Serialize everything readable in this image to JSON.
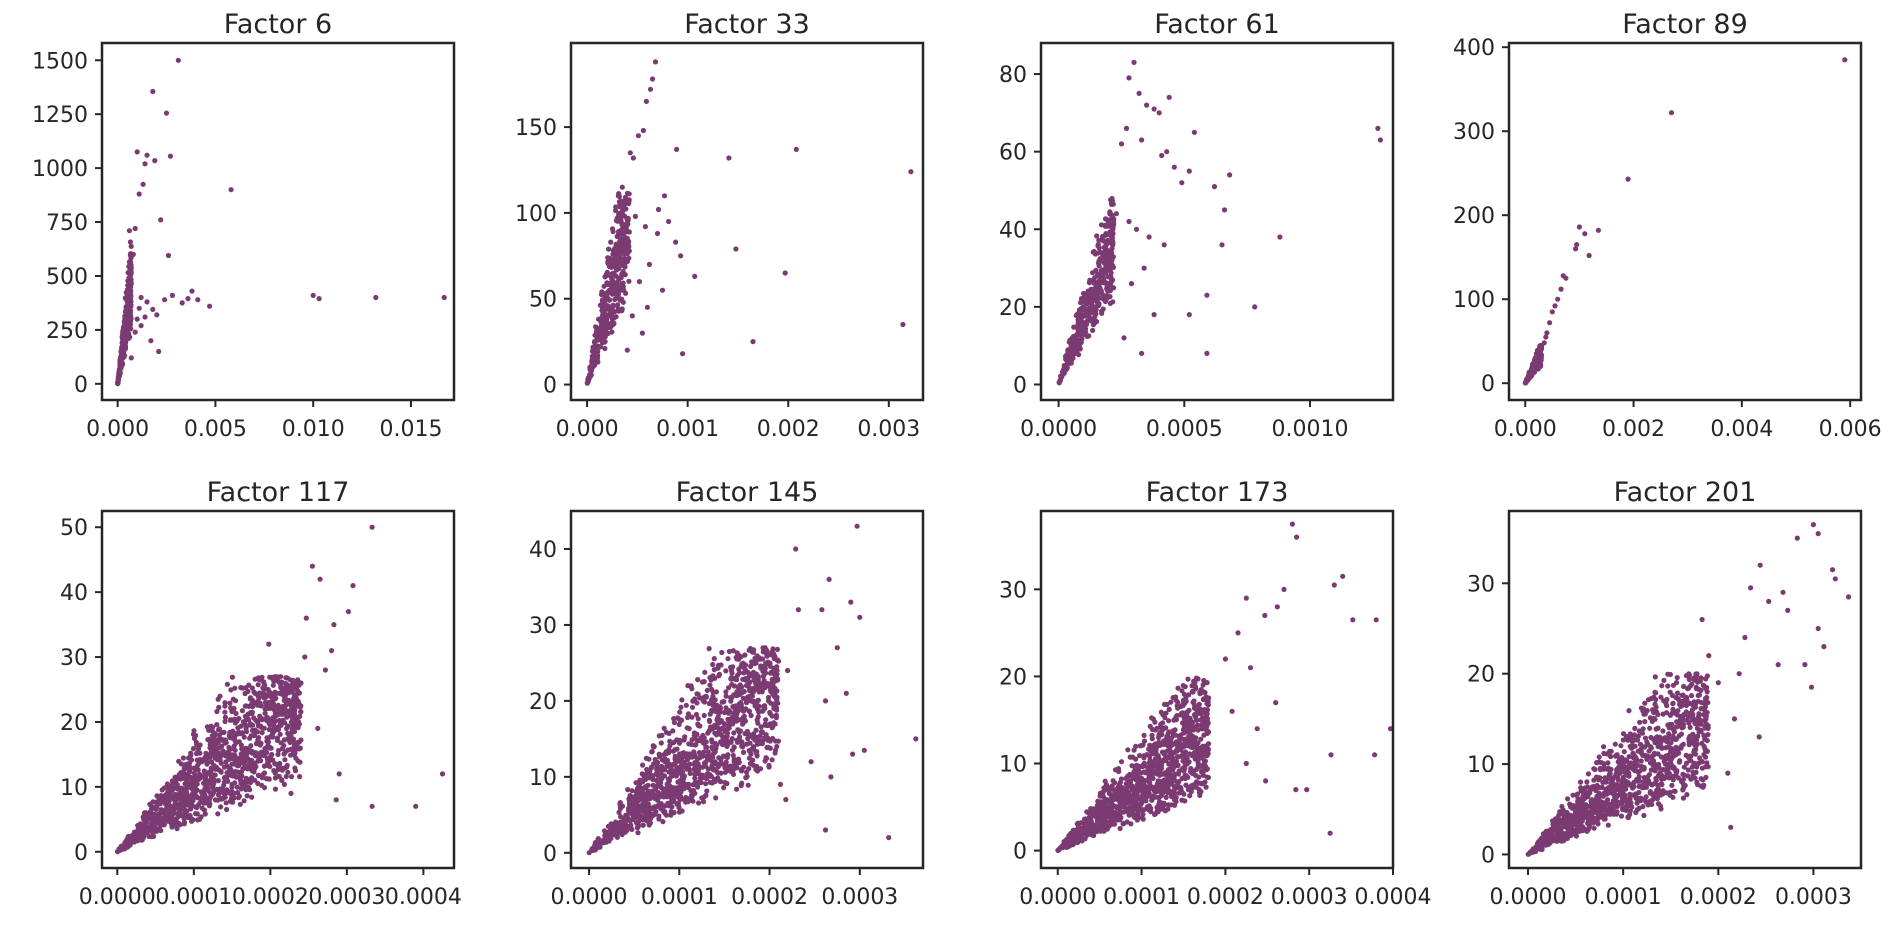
{
  "figure": {
    "marker_color": "#7b3b72",
    "text_color": "#262626"
  },
  "chart_data": [
    {
      "type": "scatter",
      "title": "Factor 6",
      "xlim": [
        -0.0008,
        0.0172
      ],
      "ylim": [
        -75,
        1580
      ],
      "xticks": [
        0.0,
        0.005,
        0.01,
        0.015
      ],
      "xtick_labels": [
        "0.000",
        "0.005",
        "0.010",
        "0.015"
      ],
      "yticks": [
        0,
        250,
        500,
        750,
        1000,
        1250,
        1500
      ],
      "ytick_labels": [
        "0",
        "250",
        "500",
        "750",
        "1000",
        "1250",
        "1500"
      ],
      "points": [
        [
          0.0031,
          1500
        ],
        [
          0.0018,
          1355
        ],
        [
          0.0025,
          1255
        ],
        [
          0.001,
          1075
        ],
        [
          0.0015,
          1060
        ],
        [
          0.0019,
          1035
        ],
        [
          0.0027,
          1055
        ],
        [
          0.0014,
          1020
        ],
        [
          0.0013,
          925
        ],
        [
          0.0011,
          880
        ],
        [
          0.0058,
          900
        ],
        [
          0.0022,
          760
        ],
        [
          0.0009,
          720
        ],
        [
          0.0006,
          710
        ],
        [
          0.0026,
          595
        ],
        [
          0.0008,
          600
        ],
        [
          0.0012,
          400
        ],
        [
          0.0024,
          390
        ],
        [
          0.0028,
          410
        ],
        [
          0.0033,
          375
        ],
        [
          0.0036,
          395
        ],
        [
          0.0038,
          430
        ],
        [
          0.0041,
          390
        ],
        [
          0.0047,
          360
        ],
        [
          0.01,
          410
        ],
        [
          0.0103,
          395
        ],
        [
          0.0132,
          400
        ],
        [
          0.0167,
          400
        ],
        [
          0.0018,
          345
        ],
        [
          0.0015,
          380
        ],
        [
          0.002,
          320
        ],
        [
          0.0012,
          270
        ],
        [
          0.0014,
          310
        ],
        [
          0.0017,
          200
        ],
        [
          0.0021,
          150
        ],
        [
          0.0009,
          240
        ],
        [
          0.001,
          300
        ],
        [
          0.0011,
          350
        ],
        [
          0.0007,
          120
        ],
        [
          0.0005,
          380
        ]
      ],
      "dense_cluster": {
        "x_max": 0.0007,
        "y_max": 700,
        "slope": 800000,
        "spread": 0.3,
        "count": 380
      }
    },
    {
      "type": "scatter",
      "title": "Factor 33",
      "xlim": [
        -0.00016,
        0.00334
      ],
      "ylim": [
        -9,
        199
      ],
      "xticks": [
        0.0,
        0.001,
        0.002,
        0.003
      ],
      "xtick_labels": [
        "0.000",
        "0.001",
        "0.002",
        "0.003"
      ],
      "yticks": [
        0,
        50,
        100,
        150
      ],
      "ytick_labels": [
        "0",
        "50",
        "100",
        "150"
      ],
      "points": [
        [
          0.00068,
          188
        ],
        [
          0.00065,
          178
        ],
        [
          0.00063,
          172
        ],
        [
          0.00059,
          165
        ],
        [
          0.00056,
          148
        ],
        [
          0.00051,
          145
        ],
        [
          0.00043,
          135
        ],
        [
          0.00046,
          132
        ],
        [
          0.00089,
          137
        ],
        [
          0.00141,
          132
        ],
        [
          0.00208,
          137
        ],
        [
          0.00322,
          124
        ],
        [
          0.00148,
          79
        ],
        [
          0.00197,
          65
        ],
        [
          0.00314,
          35
        ],
        [
          0.00165,
          25
        ],
        [
          0.00107,
          63
        ],
        [
          0.00093,
          75
        ],
        [
          0.00081,
          95
        ],
        [
          0.00077,
          110
        ],
        [
          0.00071,
          102
        ],
        [
          0.00088,
          83
        ],
        [
          0.00095,
          18
        ],
        [
          0.00075,
          55
        ],
        [
          0.0006,
          45
        ],
        [
          0.00055,
          30
        ],
        [
          0.00062,
          70
        ],
        [
          0.0007,
          88
        ],
        [
          0.00052,
          60
        ],
        [
          0.00045,
          40
        ],
        [
          0.0004,
          20
        ],
        [
          0.00038,
          85
        ],
        [
          0.00035,
          115
        ],
        [
          0.00031,
          110
        ],
        [
          0.00048,
          98
        ],
        [
          0.00058,
          92
        ]
      ],
      "dense_cluster": {
        "x_max": 0.00042,
        "y_max": 112,
        "slope": 300000,
        "spread": 0.35,
        "count": 420
      }
    },
    {
      "type": "scatter",
      "title": "Factor 61",
      "xlim": [
        -7e-05,
        0.00133
      ],
      "ylim": [
        -4,
        88
      ],
      "xticks": [
        0.0,
        0.0005,
        0.001
      ],
      "xtick_labels": [
        "0.0000",
        "0.0005",
        "0.0010"
      ],
      "yticks": [
        0,
        20,
        40,
        60,
        80
      ],
      "ytick_labels": [
        "0",
        "20",
        "40",
        "60",
        "80"
      ],
      "points": [
        [
          0.0003,
          83
        ],
        [
          0.00028,
          79
        ],
        [
          0.00032,
          75
        ],
        [
          0.00035,
          72
        ],
        [
          0.00038,
          71
        ],
        [
          0.0004,
          70
        ],
        [
          0.00044,
          74
        ],
        [
          0.00046,
          56
        ],
        [
          0.00049,
          52
        ],
        [
          0.00052,
          55
        ],
        [
          0.00054,
          65
        ],
        [
          0.00043,
          60
        ],
        [
          0.00041,
          59
        ],
        [
          0.00033,
          63
        ],
        [
          0.00027,
          66
        ],
        [
          0.00025,
          62
        ],
        [
          0.00062,
          51
        ],
        [
          0.00068,
          54
        ],
        [
          0.00066,
          45
        ],
        [
          0.00065,
          36
        ],
        [
          0.00078,
          20
        ],
        [
          0.00059,
          23
        ],
        [
          0.00052,
          18
        ],
        [
          0.00088,
          38
        ],
        [
          0.00127,
          66
        ],
        [
          0.00128,
          63
        ],
        [
          0.00059,
          8
        ],
        [
          0.00042,
          36
        ],
        [
          0.00036,
          38
        ],
        [
          0.00031,
          40
        ],
        [
          0.00029,
          26
        ],
        [
          0.00034,
          30
        ],
        [
          0.00038,
          18
        ],
        [
          0.00033,
          8
        ],
        [
          0.00026,
          12
        ],
        [
          0.00023,
          44
        ],
        [
          0.00028,
          42
        ]
      ],
      "dense_cluster": {
        "x_max": 0.00022,
        "y_max": 48,
        "slope": 215000,
        "spread": 0.3,
        "count": 420
      }
    },
    {
      "type": "scatter",
      "title": "Factor 89",
      "xlim": [
        -0.0003,
        0.0062
      ],
      "ylim": [
        -20,
        405
      ],
      "xticks": [
        0.0,
        0.002,
        0.004,
        0.006
      ],
      "xtick_labels": [
        "0.000",
        "0.002",
        "0.004",
        "0.006"
      ],
      "yticks": [
        0,
        100,
        200,
        300,
        400
      ],
      "ytick_labels": [
        "0",
        "100",
        "200",
        "300",
        "400"
      ],
      "points": [
        [
          0.0059,
          385
        ],
        [
          0.0027,
          322
        ],
        [
          0.0019,
          243
        ],
        [
          0.00135,
          182
        ],
        [
          0.001,
          186
        ],
        [
          0.0011,
          178
        ],
        [
          0.00095,
          165
        ],
        [
          0.00093,
          160
        ],
        [
          0.00118,
          152
        ],
        [
          0.0007,
          128
        ],
        [
          0.00075,
          125
        ],
        [
          0.00066,
          112
        ],
        [
          0.0006,
          100
        ],
        [
          0.00055,
          92
        ],
        [
          0.0005,
          85
        ],
        [
          0.00045,
          72
        ],
        [
          0.0004,
          60
        ],
        [
          0.00038,
          55
        ],
        [
          0.00035,
          48
        ],
        [
          0.0003,
          42
        ]
      ],
      "dense_cluster": {
        "x_max": 0.0003,
        "y_max": 45,
        "slope": 150000,
        "spread": 0.25,
        "count": 220
      }
    },
    {
      "type": "scatter",
      "title": "Factor 117",
      "xlim": [
        -2e-05,
        0.00044
      ],
      "ylim": [
        -2.5,
        52.5
      ],
      "xticks": [
        0.0,
        0.0001,
        0.0002,
        0.0003,
        0.0004
      ],
      "xtick_labels": [
        "0.0000",
        "0.0001",
        "0.0002",
        "0.0003",
        "0.0004"
      ],
      "yticks": [
        0,
        10,
        20,
        30,
        40,
        50
      ],
      "ytick_labels": [
        "0",
        "10",
        "20",
        "30",
        "40",
        "50"
      ],
      "points": [
        [
          0.000333,
          50
        ],
        [
          0.000255,
          44
        ],
        [
          0.000265,
          42
        ],
        [
          0.000308,
          41
        ],
        [
          0.000302,
          37
        ],
        [
          0.000283,
          35
        ],
        [
          0.00028,
          31
        ],
        [
          0.000272,
          28
        ],
        [
          0.000247,
          36
        ],
        [
          0.00029,
          12
        ],
        [
          0.000286,
          8
        ],
        [
          0.000333,
          7
        ],
        [
          0.00039,
          7
        ],
        [
          0.000425,
          12
        ],
        [
          0.00024,
          26
        ],
        [
          0.000232,
          22
        ],
        [
          0.000262,
          19
        ],
        [
          0.000227,
          9
        ],
        [
          0.00021,
          15
        ],
        [
          0.000198,
          32
        ],
        [
          0.000245,
          30
        ],
        [
          0.000215,
          11
        ],
        [
          0.000192,
          24
        ],
        [
          0.000236,
          14
        ]
      ],
      "dense_cluster": {
        "x_max": 0.00024,
        "y_max": 27,
        "slope": 130000,
        "spread": 0.45,
        "count": 1200
      }
    },
    {
      "type": "scatter",
      "title": "Factor 145",
      "xlim": [
        -2e-05,
        0.00037
      ],
      "ylim": [
        -2,
        45
      ],
      "xticks": [
        0.0,
        0.0001,
        0.0002,
        0.0003
      ],
      "xtick_labels": [
        "0.0000",
        "0.0001",
        "0.0002",
        "0.0003"
      ],
      "yticks": [
        0,
        10,
        20,
        30,
        40
      ],
      "ytick_labels": [
        "0",
        "10",
        "20",
        "30",
        "40"
      ],
      "points": [
        [
          0.000297,
          43
        ],
        [
          0.000229,
          40
        ],
        [
          0.000266,
          36
        ],
        [
          0.000258,
          32
        ],
        [
          0.000232,
          32
        ],
        [
          0.00029,
          33
        ],
        [
          0.0003,
          31
        ],
        [
          0.000275,
          27
        ],
        [
          0.000285,
          21
        ],
        [
          0.000262,
          20
        ],
        [
          0.000268,
          10
        ],
        [
          0.000292,
          13
        ],
        [
          0.000305,
          13.5
        ],
        [
          0.000362,
          15
        ],
        [
          0.000332,
          2
        ],
        [
          0.000262,
          3
        ],
        [
          0.000218,
          7
        ],
        [
          0.000246,
          12
        ],
        [
          0.00022,
          24
        ],
        [
          0.000208,
          14
        ],
        [
          0.000195,
          27
        ],
        [
          0.000212,
          9
        ]
      ],
      "dense_cluster": {
        "x_max": 0.00021,
        "y_max": 27,
        "slope": 145000,
        "spread": 0.45,
        "count": 1200
      }
    },
    {
      "type": "scatter",
      "title": "Factor 173",
      "xlim": [
        -2e-05,
        0.0004
      ],
      "ylim": [
        -2,
        39
      ],
      "xticks": [
        0.0,
        0.0001,
        0.0002,
        0.0003,
        0.0004
      ],
      "xtick_labels": [
        "0.0000",
        "0.0001",
        "0.0002",
        "0.0003",
        "0.0004"
      ],
      "yticks": [
        0,
        10,
        20,
        30
      ],
      "ytick_labels": [
        "0",
        "10",
        "20",
        "30"
      ],
      "points": [
        [
          0.00028,
          37.5
        ],
        [
          0.000285,
          36
        ],
        [
          0.00034,
          31.5
        ],
        [
          0.00033,
          30.5
        ],
        [
          0.00027,
          30
        ],
        [
          0.000262,
          28
        ],
        [
          0.000247,
          27
        ],
        [
          0.000225,
          29
        ],
        [
          0.000215,
          25
        ],
        [
          0.000352,
          26.5
        ],
        [
          0.00038,
          26.5
        ],
        [
          0.000397,
          14
        ],
        [
          0.000378,
          11
        ],
        [
          0.000326,
          11
        ],
        [
          0.000325,
          2
        ],
        [
          0.000297,
          7
        ],
        [
          0.000284,
          7
        ],
        [
          0.000248,
          8
        ],
        [
          0.000238,
          14
        ],
        [
          0.00026,
          17
        ],
        [
          0.00023,
          21
        ],
        [
          0.0002,
          22
        ],
        [
          0.000208,
          16
        ],
        [
          0.000225,
          10
        ]
      ],
      "dense_cluster": {
        "x_max": 0.00018,
        "y_max": 20,
        "slope": 100000,
        "spread": 0.45,
        "count": 1100
      }
    },
    {
      "type": "scatter",
      "title": "Factor 201",
      "xlim": [
        -2e-05,
        0.00035
      ],
      "ylim": [
        -1.5,
        38
      ],
      "xticks": [
        0.0,
        0.0001,
        0.0002,
        0.0003
      ],
      "xtick_labels": [
        "0.0000",
        "0.0001",
        "0.0002",
        "0.0003"
      ],
      "yticks": [
        0,
        10,
        20,
        30
      ],
      "ytick_labels": [
        "0",
        "10",
        "20",
        "30"
      ],
      "points": [
        [
          0.0003,
          36.5
        ],
        [
          0.000305,
          35.5
        ],
        [
          0.000283,
          35
        ],
        [
          0.00032,
          31.5
        ],
        [
          0.000323,
          30.5
        ],
        [
          0.000337,
          28.5
        ],
        [
          0.000244,
          32
        ],
        [
          0.000268,
          29
        ],
        [
          0.000273,
          27
        ],
        [
          0.000253,
          28
        ],
        [
          0.000234,
          29.5
        ],
        [
          0.000305,
          25
        ],
        [
          0.000311,
          23
        ],
        [
          0.000291,
          21
        ],
        [
          0.000263,
          21
        ],
        [
          0.000298,
          18.5
        ],
        [
          0.000222,
          20
        ],
        [
          0.000217,
          15
        ],
        [
          0.00021,
          9
        ],
        [
          0.000213,
          3
        ],
        [
          0.000243,
          13
        ],
        [
          0.000183,
          26
        ],
        [
          0.000228,
          24
        ],
        [
          0.0002,
          19
        ],
        [
          0.00019,
          22
        ]
      ],
      "dense_cluster": {
        "x_max": 0.00019,
        "y_max": 20,
        "slope": 105000,
        "spread": 0.45,
        "count": 1100
      }
    }
  ]
}
